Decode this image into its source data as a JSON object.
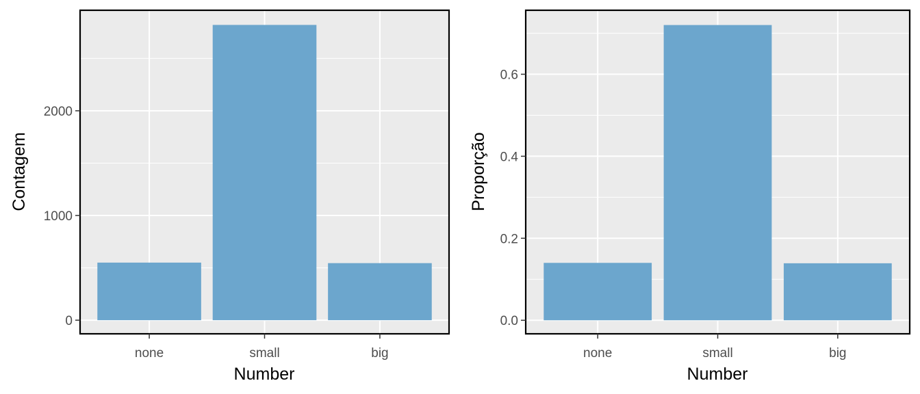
{
  "colors": {
    "bar": "#6ca6cd",
    "panel_bg": "#ebebeb",
    "grid": "#ffffff",
    "border": "#000000"
  },
  "chart_data": [
    {
      "type": "bar",
      "categories": [
        "none",
        "small",
        "big"
      ],
      "values": [
        550,
        2820,
        545
      ],
      "xlabel": "Number",
      "ylabel": "Contagem",
      "ylim": [
        -130,
        2960
      ],
      "yticks": [
        0,
        1000,
        2000
      ],
      "ytick_labels": [
        "0",
        "1000",
        "2000"
      ],
      "grid": true
    },
    {
      "type": "bar",
      "categories": [
        "none",
        "small",
        "big"
      ],
      "values": [
        0.14,
        0.72,
        0.139
      ],
      "xlabel": "Number",
      "ylabel": "Proporção",
      "ylim": [
        -0.033,
        0.756
      ],
      "yticks": [
        0.0,
        0.2,
        0.4,
        0.6
      ],
      "ytick_labels": [
        "0.0",
        "0.2",
        "0.4",
        "0.6"
      ],
      "grid": true
    }
  ]
}
